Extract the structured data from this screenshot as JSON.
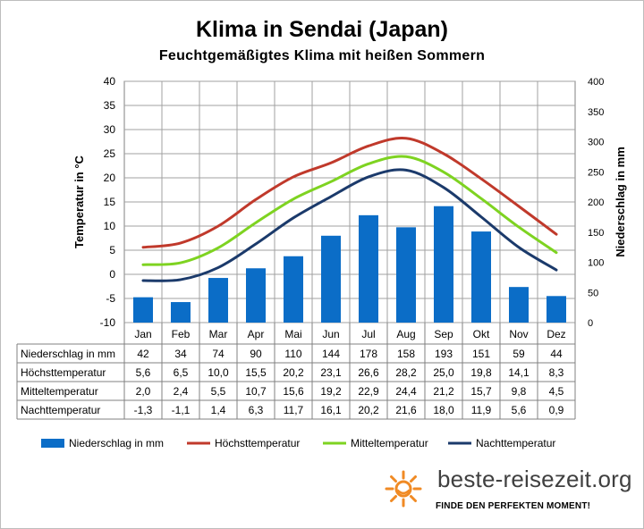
{
  "chart_data": {
    "type": "bar+line",
    "title": "Klima in Sendai (Japan)",
    "subtitle": "Feuchtgemäßigtes  Klima mit heißen  Sommern",
    "ylabel_left": "Temperatur in °C",
    "ylabel_right": "Niederschlag in mm",
    "ylim_left": [
      -10,
      40
    ],
    "ylim_right": [
      0,
      400
    ],
    "yticks_left": [
      "40",
      "35",
      "30",
      "25",
      "20",
      "15",
      "10",
      "5",
      "0",
      "-5",
      "-10"
    ],
    "yticks_right": [
      "400",
      "350",
      "300",
      "250",
      "200",
      "150",
      "100",
      "50",
      "0"
    ],
    "grid": true,
    "legend_position": "bottom",
    "categories": [
      "Jan",
      "Feb",
      "Mar",
      "Apr",
      "Mai",
      "Jun",
      "Jul",
      "Aug",
      "Sep",
      "Okt",
      "Nov",
      "Dez"
    ],
    "precipitation": {
      "name": "Niederschlag in mm",
      "color": "#0b6dc7",
      "values": [
        42,
        34,
        74,
        90,
        110,
        144,
        178,
        158,
        193,
        151,
        59,
        44
      ],
      "labels": [
        "42",
        "34",
        "74",
        "90",
        "110",
        "144",
        "178",
        "158",
        "193",
        "151",
        "59",
        "44"
      ]
    },
    "series": [
      {
        "name": "Höchsttemperatur",
        "color": "#c0392b",
        "values": [
          5.6,
          6.5,
          10.0,
          15.5,
          20.2,
          23.1,
          26.6,
          28.2,
          25.0,
          19.8,
          14.1,
          8.3
        ],
        "labels": [
          "5,6",
          "6,5",
          "10,0",
          "15,5",
          "20,2",
          "23,1",
          "26,6",
          "28,2",
          "25,0",
          "19,8",
          "14,1",
          "8,3"
        ]
      },
      {
        "name": "Mitteltemperatur",
        "color": "#7ed321",
        "values": [
          2.0,
          2.4,
          5.5,
          10.7,
          15.6,
          19.2,
          22.9,
          24.4,
          21.2,
          15.7,
          9.8,
          4.5
        ],
        "labels": [
          "2,0",
          "2,4",
          "5,5",
          "10,7",
          "15,6",
          "19,2",
          "22,9",
          "24,4",
          "21,2",
          "15,7",
          "9,8",
          "4,5"
        ]
      },
      {
        "name": "Nachttemperatur",
        "color": "#1b3a6b",
        "values": [
          -1.3,
          -1.1,
          1.4,
          6.3,
          11.7,
          16.1,
          20.2,
          21.6,
          18.0,
          11.9,
          5.6,
          0.9
        ],
        "labels": [
          "-1,3",
          "-1,1",
          "1,4",
          "6,3",
          "11,7",
          "16,1",
          "20,2",
          "21,6",
          "18,0",
          "11,9",
          "5,6",
          "0,9"
        ]
      }
    ]
  },
  "branding": {
    "site": "beste-reisezeit.org",
    "tagline": "FINDE DEN PERFEKTEN MOMENT!",
    "logo_color": "#f08a24"
  }
}
